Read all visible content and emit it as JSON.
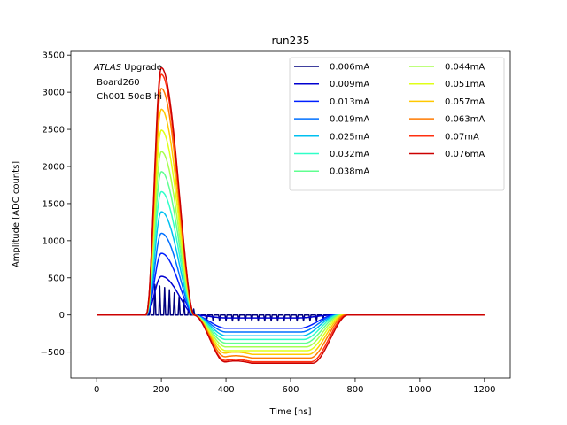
{
  "chart_data": {
    "type": "line",
    "title": "run235",
    "xlabel": "Time [ns]",
    "ylabel": "Amplitude [ADC counts]",
    "xlim": [
      -80,
      1280
    ],
    "ylim": [
      -850,
      3550
    ],
    "xticks": [
      0,
      200,
      400,
      600,
      800,
      1000,
      1200
    ],
    "yticks": [
      -500,
      0,
      500,
      1000,
      1500,
      2000,
      2500,
      3000,
      3500
    ],
    "grid": false,
    "legend_position": "top-right",
    "legend_columns": 2,
    "annotation": {
      "line1_italic": "ATLAS",
      "line1_rest": " Upgrade",
      "line2": " Board260",
      "line3": " Ch001 50dB hi"
    },
    "series": [
      {
        "name": "0.006mA",
        "color": "#00007f",
        "peak": 410,
        "undershoot": 10
      },
      {
        "name": "0.009mA",
        "color": "#0000d0",
        "peak": 520,
        "undershoot": 40
      },
      {
        "name": "0.013mA",
        "color": "#0020ff",
        "peak": 830,
        "undershoot": 180
      },
      {
        "name": "0.019mA",
        "color": "#0070ff",
        "peak": 1100,
        "undershoot": 230
      },
      {
        "name": "0.025mA",
        "color": "#00c0f0",
        "peak": 1390,
        "undershoot": 280
      },
      {
        "name": "0.032mA",
        "color": "#30ffc8",
        "peak": 1660,
        "undershoot": 330
      },
      {
        "name": "0.038mA",
        "color": "#60ff90",
        "peak": 1930,
        "undershoot": 380
      },
      {
        "name": "0.044mA",
        "color": "#a8ff50",
        "peak": 2200,
        "undershoot": 430
      },
      {
        "name": "0.051mA",
        "color": "#e0ff18",
        "peak": 2490,
        "undershoot": 480
      },
      {
        "name": "0.057mA",
        "color": "#ffc800",
        "peak": 2770,
        "undershoot": 530
      },
      {
        "name": "0.063mA",
        "color": "#ff7a00",
        "peak": 3050,
        "undershoot": 580
      },
      {
        "name": "0.07mA",
        "color": "#ff3010",
        "peak": 3240,
        "undershoot": 630
      },
      {
        "name": "0.076mA",
        "color": "#cc0000",
        "peak": 3330,
        "undershoot": 650
      }
    ]
  }
}
